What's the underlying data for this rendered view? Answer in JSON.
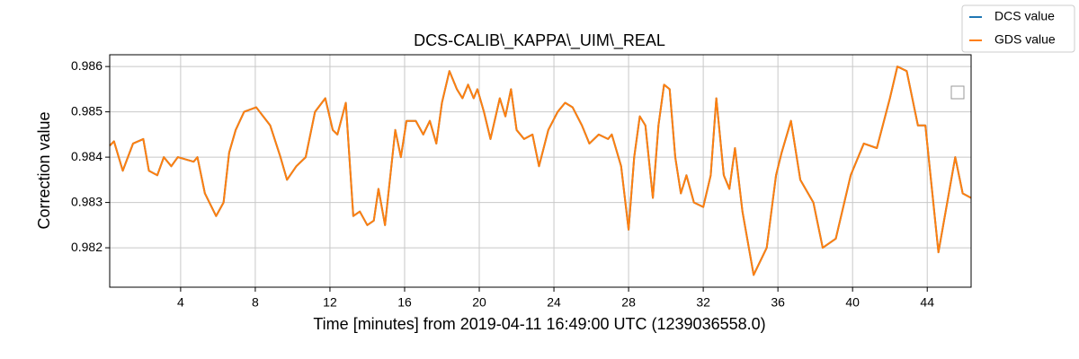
{
  "chart_data": {
    "type": "line",
    "title": "DCS-CALIB\\_KAPPA\\_UIM\\_REAL",
    "xlabel": "Time [minutes] from 2019-04-11 16:49:00 UTC (1239036558.0)",
    "ylabel": "Correction value",
    "x": [
      0.2,
      0.43,
      0.9,
      1.45,
      2.0,
      2.3,
      2.75,
      3.1,
      3.5,
      3.85,
      4.7,
      4.9,
      5.3,
      5.9,
      6.3,
      6.6,
      6.95,
      7.4,
      8.05,
      8.8,
      9.35,
      9.7,
      10.2,
      10.7,
      11.2,
      11.75,
      12.15,
      12.4,
      12.85,
      13.25,
      13.6,
      14.0,
      14.35,
      14.6,
      14.95,
      15.5,
      15.8,
      16.1,
      16.6,
      17.0,
      17.35,
      17.7,
      18.0,
      18.4,
      18.8,
      19.1,
      19.4,
      19.7,
      19.9,
      20.25,
      20.6,
      21.1,
      21.4,
      21.7,
      22.0,
      22.4,
      22.85,
      23.2,
      23.7,
      24.2,
      24.6,
      25.0,
      25.5,
      25.9,
      26.4,
      26.9,
      27.1,
      27.6,
      28.0,
      28.3,
      28.6,
      28.9,
      29.3,
      29.6,
      29.9,
      30.2,
      30.5,
      30.8,
      31.1,
      31.5,
      32.0,
      32.4,
      32.7,
      33.1,
      33.4,
      33.7,
      34.1,
      34.7,
      35.4,
      35.9,
      36.2,
      36.7,
      37.2,
      37.9,
      38.4,
      39.1,
      39.9,
      40.6,
      41.3,
      42.0,
      42.4,
      42.9,
      43.5,
      43.9,
      44.6,
      45.2,
      45.5,
      45.9,
      46.35
    ],
    "series": [
      {
        "name": "DCS value",
        "color": "#1f77b4",
        "values": [
          0.98425,
          0.98435,
          0.9837,
          0.9843,
          0.9844,
          0.9837,
          0.9836,
          0.984,
          0.9838,
          0.984,
          0.9839,
          0.984,
          0.9832,
          0.9827,
          0.983,
          0.9841,
          0.9846,
          0.985,
          0.9851,
          0.9847,
          0.984,
          0.9835,
          0.9838,
          0.984,
          0.985,
          0.9853,
          0.9846,
          0.9845,
          0.9852,
          0.9827,
          0.9828,
          0.9825,
          0.9826,
          0.9833,
          0.9825,
          0.9846,
          0.984,
          0.9848,
          0.9848,
          0.9845,
          0.9848,
          0.9843,
          0.9852,
          0.9859,
          0.9855,
          0.9853,
          0.9856,
          0.9853,
          0.9855,
          0.985,
          0.9844,
          0.9853,
          0.9849,
          0.9855,
          0.9846,
          0.9844,
          0.9845,
          0.9838,
          0.9846,
          0.985,
          0.9852,
          0.9851,
          0.9847,
          0.9843,
          0.9845,
          0.9844,
          0.9845,
          0.9838,
          0.9824,
          0.984,
          0.9849,
          0.9847,
          0.9831,
          0.9847,
          0.9856,
          0.9855,
          0.984,
          0.9832,
          0.9836,
          0.983,
          0.9829,
          0.9836,
          0.9853,
          0.9836,
          0.9833,
          0.9842,
          0.9828,
          0.9814,
          0.982,
          0.9836,
          0.9841,
          0.9848,
          0.9835,
          0.983,
          0.982,
          0.9822,
          0.9836,
          0.9843,
          0.9842,
          0.9853,
          0.986,
          0.9859,
          0.9847,
          0.9847,
          0.9819,
          0.9833,
          0.984,
          0.9832,
          0.9831
        ]
      },
      {
        "name": "GDS value",
        "color": "#ff7f0e",
        "values": [
          0.98425,
          0.98435,
          0.9837,
          0.9843,
          0.9844,
          0.9837,
          0.9836,
          0.984,
          0.9838,
          0.984,
          0.9839,
          0.984,
          0.9832,
          0.9827,
          0.983,
          0.9841,
          0.9846,
          0.985,
          0.9851,
          0.9847,
          0.984,
          0.9835,
          0.9838,
          0.984,
          0.985,
          0.9853,
          0.9846,
          0.9845,
          0.9852,
          0.9827,
          0.9828,
          0.9825,
          0.9826,
          0.9833,
          0.9825,
          0.9846,
          0.984,
          0.9848,
          0.9848,
          0.9845,
          0.9848,
          0.9843,
          0.9852,
          0.9859,
          0.9855,
          0.9853,
          0.9856,
          0.9853,
          0.9855,
          0.985,
          0.9844,
          0.9853,
          0.9849,
          0.9855,
          0.9846,
          0.9844,
          0.9845,
          0.9838,
          0.9846,
          0.985,
          0.9852,
          0.9851,
          0.9847,
          0.9843,
          0.9845,
          0.9844,
          0.9845,
          0.9838,
          0.9824,
          0.984,
          0.9849,
          0.9847,
          0.9831,
          0.9847,
          0.9856,
          0.9855,
          0.984,
          0.9832,
          0.9836,
          0.983,
          0.9829,
          0.9836,
          0.9853,
          0.9836,
          0.9833,
          0.9842,
          0.9828,
          0.9814,
          0.982,
          0.9836,
          0.9841,
          0.9848,
          0.9835,
          0.983,
          0.982,
          0.9822,
          0.9836,
          0.9843,
          0.9842,
          0.9853,
          0.986,
          0.9859,
          0.9847,
          0.9847,
          0.9819,
          0.9833,
          0.984,
          0.9832,
          0.9831
        ]
      }
    ],
    "xlim": [
      0.2,
      46.35
    ],
    "xticks": [
      4,
      8,
      12,
      16,
      20,
      24,
      28,
      32,
      36,
      40,
      44
    ],
    "ylim": [
      0.98113,
      0.98626
    ],
    "yticks": [
      0.982,
      0.983,
      0.984,
      0.985,
      0.986
    ],
    "grid": true,
    "legend": "upper right"
  }
}
